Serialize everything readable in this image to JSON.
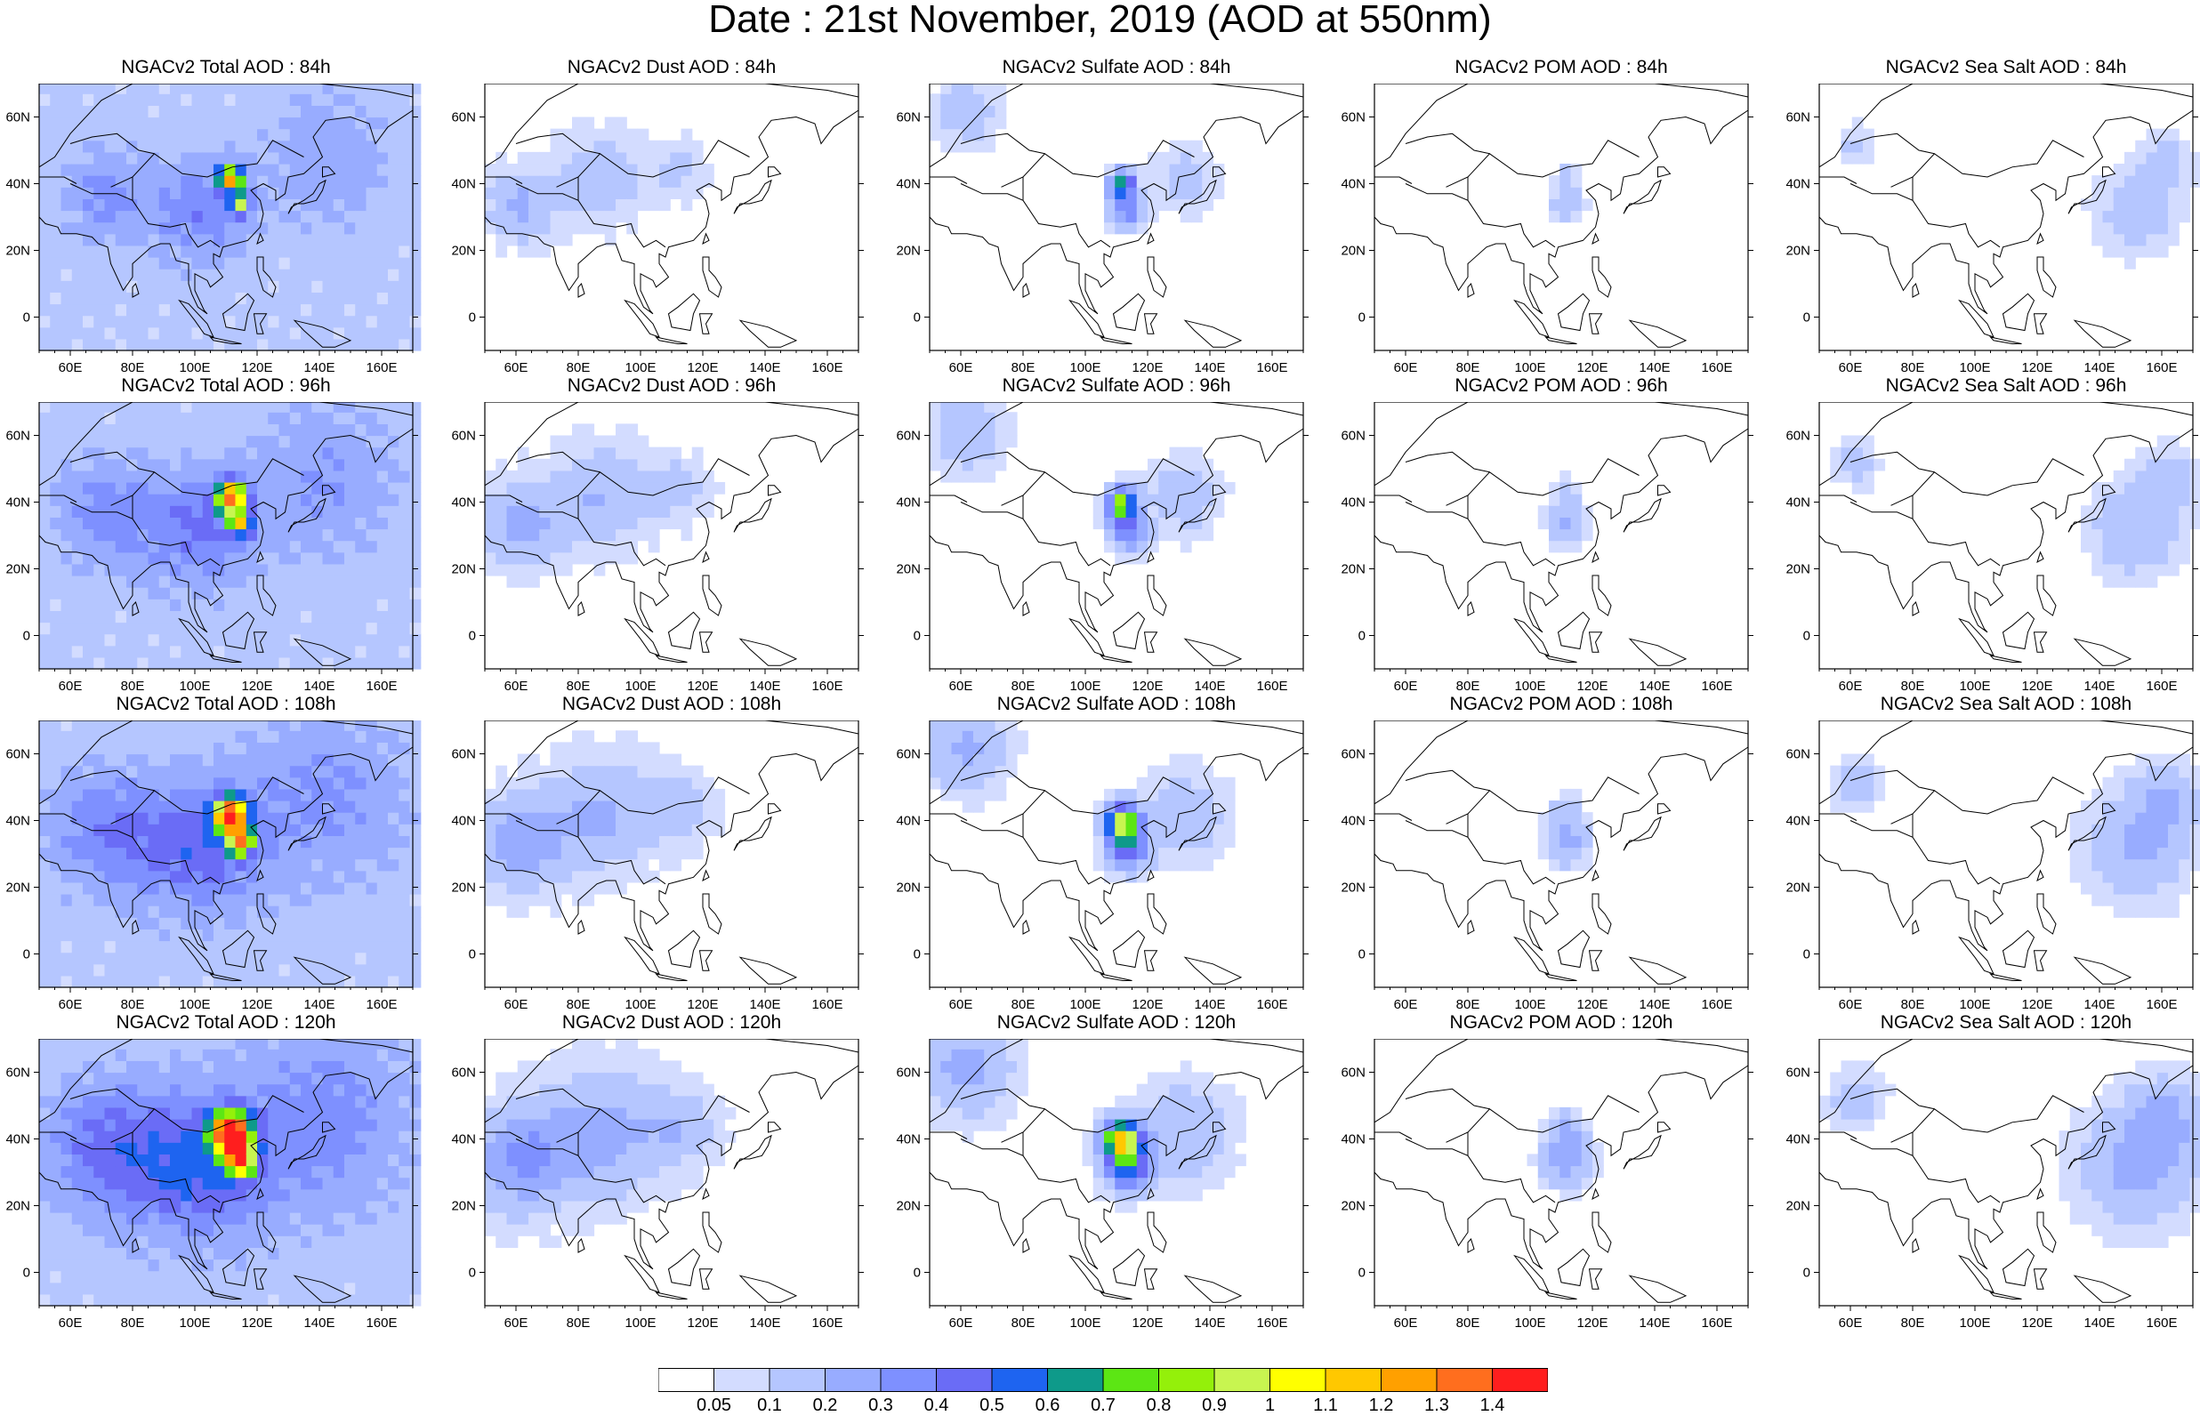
{
  "title": "Date : 21st November, 2019 (AOD at 550nm)",
  "panels": [
    {
      "title": "NGACv2 Total AOD : 84h",
      "species": "total",
      "hour": 84
    },
    {
      "title": "NGACv2 Dust AOD : 84h",
      "species": "dust",
      "hour": 84
    },
    {
      "title": "NGACv2 Sulfate AOD : 84h",
      "species": "sulfate",
      "hour": 84
    },
    {
      "title": "NGACv2 POM AOD : 84h",
      "species": "pom",
      "hour": 84
    },
    {
      "title": "NGACv2 Sea Salt AOD : 84h",
      "species": "seasalt",
      "hour": 84
    },
    {
      "title": "NGACv2 Total AOD : 96h",
      "species": "total",
      "hour": 96
    },
    {
      "title": "NGACv2 Dust AOD : 96h",
      "species": "dust",
      "hour": 96
    },
    {
      "title": "NGACv2 Sulfate AOD : 96h",
      "species": "sulfate",
      "hour": 96
    },
    {
      "title": "NGACv2 POM AOD : 96h",
      "species": "pom",
      "hour": 96
    },
    {
      "title": "NGACv2 Sea Salt AOD : 96h",
      "species": "seasalt",
      "hour": 96
    },
    {
      "title": "NGACv2 Total AOD : 108h",
      "species": "total",
      "hour": 108
    },
    {
      "title": "NGACv2 Dust AOD : 108h",
      "species": "dust",
      "hour": 108
    },
    {
      "title": "NGACv2 Sulfate AOD : 108h",
      "species": "sulfate",
      "hour": 108
    },
    {
      "title": "NGACv2 POM AOD : 108h",
      "species": "pom",
      "hour": 108
    },
    {
      "title": "NGACv2 Sea Salt AOD : 108h",
      "species": "seasalt",
      "hour": 108
    },
    {
      "title": "NGACv2 Total AOD : 120h",
      "species": "total",
      "hour": 120
    },
    {
      "title": "NGACv2 Dust AOD : 120h",
      "species": "dust",
      "hour": 120
    },
    {
      "title": "NGACv2 Sulfate AOD : 120h",
      "species": "sulfate",
      "hour": 120
    },
    {
      "title": "NGACv2 POM AOD : 120h",
      "species": "pom",
      "hour": 120
    },
    {
      "title": "NGACv2 Sea Salt  AOD : 120h",
      "species": "seasalt",
      "hour": 120
    }
  ],
  "map": {
    "lon_range": [
      50,
      170
    ],
    "lat_range": [
      -10,
      70
    ],
    "lon_ticks": [
      "60E",
      "80E",
      "100E",
      "120E",
      "140E",
      "160E"
    ],
    "lon_tick_values": [
      60,
      80,
      100,
      120,
      140,
      160
    ],
    "lat_ticks": [
      "60N",
      "40N",
      "20N",
      "0"
    ],
    "lat_tick_values": [
      60,
      40,
      20,
      0
    ]
  },
  "colorbar": {
    "colors": [
      "#ffffff",
      "#d3dcff",
      "#b5c6ff",
      "#98acff",
      "#7e90ff",
      "#6a6cf6",
      "#1e64f0",
      "#0e9a8a",
      "#5ce614",
      "#94f00a",
      "#c8f550",
      "#ffff00",
      "#ffc800",
      "#ffa000",
      "#ff6e1e",
      "#ff1e1e"
    ],
    "labels": [
      "0.05",
      "0.1",
      "0.2",
      "0.3",
      "0.4",
      "0.5",
      "0.6",
      "0.7",
      "0.8",
      "0.9",
      "1",
      "1.1",
      "1.2",
      "1.3",
      "1.4"
    ]
  }
}
